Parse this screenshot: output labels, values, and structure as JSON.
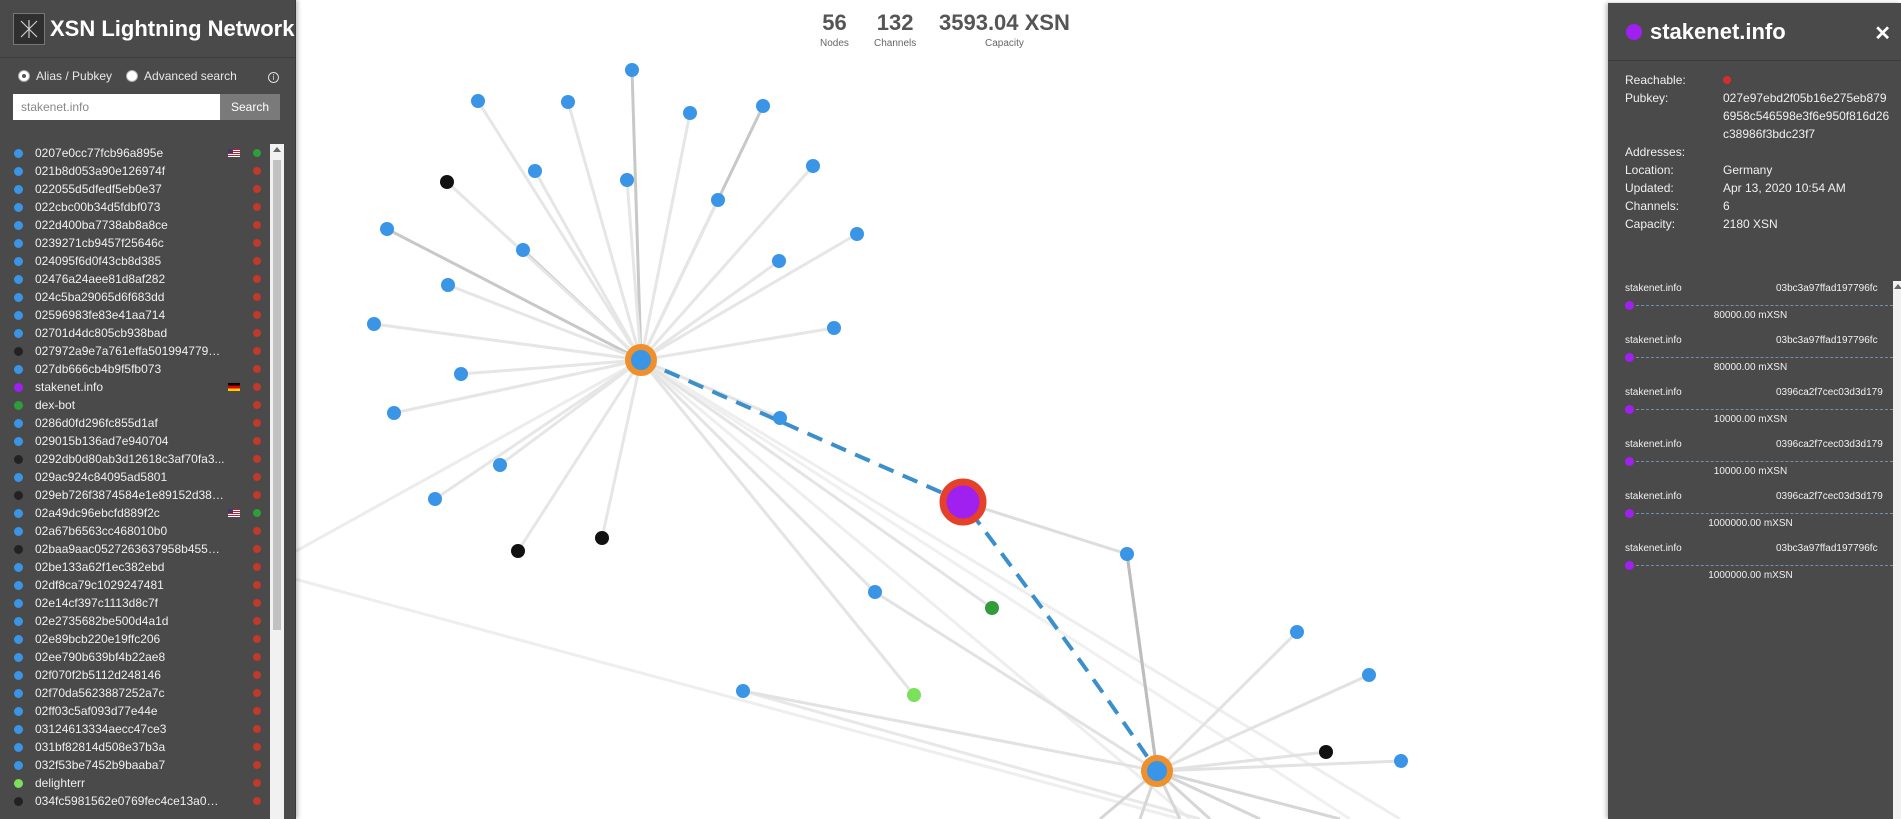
{
  "header": {
    "title": "XSN Lightning Network"
  },
  "search": {
    "modes": [
      "Alias / Pubkey",
      "Advanced search"
    ],
    "value": "stakenet.info",
    "button": "Search"
  },
  "stats": [
    {
      "value": "56",
      "label": "Nodes"
    },
    {
      "value": "132",
      "label": "Channels"
    },
    {
      "value": "3593.04 XSN",
      "label": "Capacity"
    }
  ],
  "node_list": [
    {
      "label": "0207e0cc77fcb96a895e",
      "dot": "#3b95e6",
      "flag": "us",
      "status": "#2e9d3a"
    },
    {
      "label": "021b8d053a90e126974f",
      "dot": "#3b95e6",
      "status": "#c0392b"
    },
    {
      "label": "022055d5dfedf5eb0e37",
      "dot": "#3b95e6",
      "status": "#c0392b"
    },
    {
      "label": "022cbc00b34d5fdbf073",
      "dot": "#3b95e6",
      "status": "#c0392b"
    },
    {
      "label": "022d400ba7738ab8a8ce",
      "dot": "#3b95e6",
      "status": "#c0392b"
    },
    {
      "label": "0239271cb9457f25646c",
      "dot": "#3b95e6",
      "status": "#c0392b"
    },
    {
      "label": "024095f6d0f43cb8d385",
      "dot": "#3b95e6",
      "status": "#c0392b"
    },
    {
      "label": "02476a24aee81d8af282",
      "dot": "#3b95e6",
      "status": "#c0392b"
    },
    {
      "label": "024c5ba29065d6f683dd",
      "dot": "#3b95e6",
      "status": "#c0392b"
    },
    {
      "label": "02596983fe83e41aa714",
      "dot": "#3b95e6",
      "status": "#c0392b"
    },
    {
      "label": "02701d4dc805cb938bad",
      "dot": "#3b95e6",
      "status": "#c0392b"
    },
    {
      "label": "027972a9e7a761effa501994779cc...",
      "dot": "#222222",
      "status": "#c0392b"
    },
    {
      "label": "027db666cb4b9f5fb073",
      "dot": "#3b95e6",
      "status": "#c0392b"
    },
    {
      "label": "stakenet.info",
      "dot": "#a020f0",
      "flag": "de",
      "status": "#c0392b"
    },
    {
      "label": "dex-bot",
      "dot": "#2e9d3a",
      "status": "#c0392b"
    },
    {
      "label": "0286d0fd296fc855d1af",
      "dot": "#3b95e6",
      "status": "#c0392b"
    },
    {
      "label": "029015b136ad7e940704",
      "dot": "#3b95e6",
      "status": "#c0392b"
    },
    {
      "label": "0292db0d80ab3d12618c3af70fa3...",
      "dot": "#222222",
      "status": "#c0392b"
    },
    {
      "label": "029ac924c84095ad5801",
      "dot": "#3b95e6",
      "status": "#c0392b"
    },
    {
      "label": "029eb726f3874584e1e89152d388...",
      "dot": "#222222",
      "status": "#c0392b"
    },
    {
      "label": "02a49dc96ebcfd889f2c",
      "dot": "#3b95e6",
      "flag": "us",
      "status": "#2e9d3a"
    },
    {
      "label": "02a67b6563cc468010b0",
      "dot": "#3b95e6",
      "status": "#c0392b"
    },
    {
      "label": "02baa9aac0527263637958b45516...",
      "dot": "#222222",
      "status": "#c0392b"
    },
    {
      "label": "02be133a62f1ec382ebd",
      "dot": "#3b95e6",
      "status": "#c0392b"
    },
    {
      "label": "02df8ca79c1029247481",
      "dot": "#3b95e6",
      "status": "#c0392b"
    },
    {
      "label": "02e14cf397c1113d8c7f",
      "dot": "#3b95e6",
      "status": "#c0392b"
    },
    {
      "label": "02e2735682be500d4a1d",
      "dot": "#3b95e6",
      "status": "#c0392b"
    },
    {
      "label": "02e89bcb220e19ffc206",
      "dot": "#3b95e6",
      "status": "#c0392b"
    },
    {
      "label": "02ee790b639bf4b22ae8",
      "dot": "#3b95e6",
      "status": "#c0392b"
    },
    {
      "label": "02f070f2b5112d248146",
      "dot": "#3b95e6",
      "status": "#c0392b"
    },
    {
      "label": "02f70da5623887252a7c",
      "dot": "#3b95e6",
      "status": "#c0392b"
    },
    {
      "label": "02ff03c5af093d77e44e",
      "dot": "#3b95e6",
      "status": "#c0392b"
    },
    {
      "label": "03124613334aecc47ce3",
      "dot": "#3b95e6",
      "status": "#c0392b"
    },
    {
      "label": "031bf82814d508e37b3a",
      "dot": "#3b95e6",
      "status": "#c0392b"
    },
    {
      "label": "032f53be7452b9baaba7",
      "dot": "#3b95e6",
      "status": "#c0392b"
    },
    {
      "label": "delighterr",
      "dot": "#7be05a",
      "status": "#c0392b"
    },
    {
      "label": "034fc5981562e0769fec4ce13a0bf...",
      "dot": "#222222",
      "status": "#c0392b"
    }
  ],
  "detail": {
    "title": "stakenet.info",
    "rows": [
      {
        "key": "Reachable:",
        "value": ""
      },
      {
        "key": "Pubkey:",
        "value": "027e97ebd2f05b16e275eb8796958c546598e3f6e950f816d26c38986f3bdc23f7"
      },
      {
        "key": "",
        "value": ""
      },
      {
        "key": "Addresses:",
        "value": ""
      },
      {
        "key": "Location:",
        "value": "Germany"
      },
      {
        "key": "Updated:",
        "value": "Apr 13, 2020 10:54 AM"
      },
      {
        "key": "Channels:",
        "value": "6"
      },
      {
        "key": "Capacity:",
        "value": "2180 XSN"
      }
    ],
    "reachable_color": "#d32f2f",
    "channels": [
      {
        "alias": "stakenet.info",
        "pubkey": "03bc3a97ffad197796fc",
        "capacity": "80000.00 mXSN"
      },
      {
        "alias": "stakenet.info",
        "pubkey": "03bc3a97ffad197796fc",
        "capacity": "80000.00 mXSN"
      },
      {
        "alias": "stakenet.info",
        "pubkey": "0396ca2f7cec03d3d179",
        "capacity": "10000.00 mXSN"
      },
      {
        "alias": "stakenet.info",
        "pubkey": "0396ca2f7cec03d3d179",
        "capacity": "10000.00 mXSN"
      },
      {
        "alias": "stakenet.info",
        "pubkey": "0396ca2f7cec03d3d179",
        "capacity": "1000000.00 mXSN"
      },
      {
        "alias": "stakenet.info",
        "pubkey": "03bc3a97ffad197796fc",
        "capacity": "1000000.00 mXSN"
      }
    ]
  },
  "colors": {
    "node": "#3b95e6",
    "hub_ring": "#f0902a",
    "selected_ring": "#e5402a",
    "selected_fill": "#a020f0",
    "route": "#3b8fcb"
  }
}
